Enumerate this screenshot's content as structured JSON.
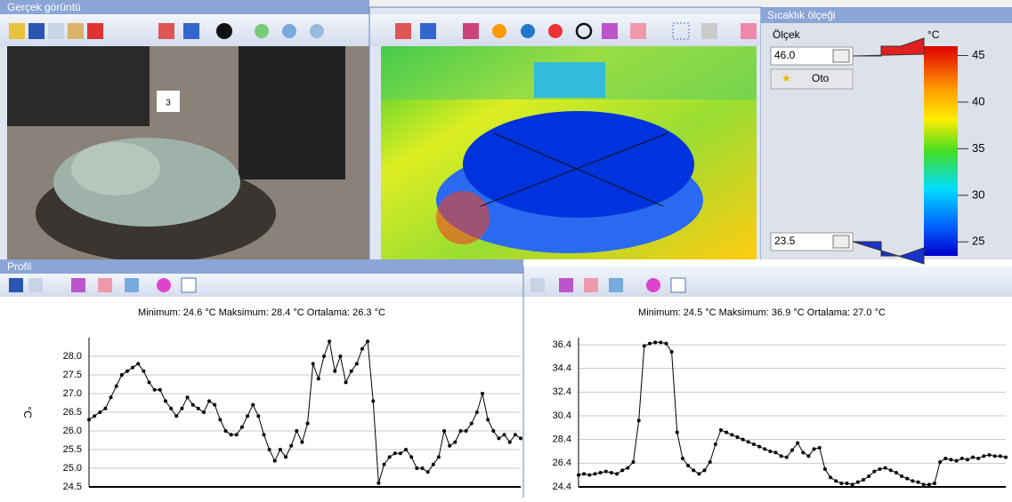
{
  "panels": {
    "photo_title": "Gerçek görüntü",
    "photo_tag": "3",
    "profile_title": "Profil"
  },
  "scale": {
    "title": "Sıcaklık ölçeği",
    "label": "Ölçek",
    "unit": "°C",
    "auto": "Oto",
    "max": {
      "value": 46,
      "label": "46.0"
    },
    "min": {
      "value": 23.5,
      "label": "23.5"
    },
    "yticks": [
      25,
      30,
      35,
      40,
      45
    ]
  },
  "chart_data": [
    {
      "type": "line",
      "subtitle": "Minimum:  24.6  °C Maksimum:  28.4  °C Ortalama:  26.3  °C",
      "ylabel": "°C",
      "ylim": [
        24.5,
        28.5
      ],
      "yticks": [
        24.5,
        {
          "value": 25,
          "label": "25.0"
        },
        25.5,
        {
          "value": 26,
          "label": "26.0"
        },
        26.5,
        {
          "value": 27,
          "label": "27.0"
        },
        27.5,
        {
          "value": 28,
          "label": "28.0"
        }
      ],
      "grid": true,
      "series": [
        {
          "color": "#000000",
          "values": [
            26.3,
            26.4,
            26.5,
            26.6,
            26.9,
            27.2,
            27.5,
            27.6,
            27.7,
            27.8,
            27.6,
            27.3,
            27.1,
            27.1,
            26.8,
            26.6,
            26.4,
            26.6,
            26.9,
            26.7,
            26.6,
            26.5,
            26.8,
            26.7,
            26.3,
            26.0,
            25.9,
            25.9,
            26.1,
            26.4,
            26.7,
            26.4,
            25.9,
            25.5,
            25.2,
            25.5,
            25.3,
            25.6,
            26.0,
            25.7,
            26.2,
            27.8,
            27.4,
            28.0,
            28.4,
            27.6,
            28.0,
            27.3,
            27.6,
            27.8,
            28.2,
            28.4,
            26.8,
            24.6,
            25.1,
            25.3,
            25.4,
            25.4,
            25.5,
            25.3,
            25.0,
            25.0,
            24.9,
            25.1,
            25.3,
            26.0,
            25.6,
            25.7,
            26.0,
            26.0,
            26.2,
            26.5,
            27.0,
            26.3,
            26.0,
            25.8,
            25.9,
            25.7,
            25.9,
            25.8
          ]
        }
      ]
    },
    {
      "type": "line",
      "subtitle": "Minimum:  24.5  °C Maksimum:  36.9  °C Ortalama:  27.0  °C",
      "ylim": [
        24.4,
        37.0
      ],
      "yticks": [
        24.4,
        26.4,
        28.4,
        30.4,
        32.4,
        34.4,
        36.4
      ],
      "grid": true,
      "series": [
        {
          "color": "#000000",
          "values": [
            25.4,
            25.5,
            25.4,
            25.5,
            25.6,
            25.7,
            25.6,
            25.5,
            25.8,
            26.0,
            26.5,
            30.0,
            36.3,
            36.5,
            36.6,
            36.6,
            36.5,
            35.8,
            29.0,
            26.8,
            26.2,
            25.8,
            25.5,
            25.8,
            26.5,
            28.0,
            29.2,
            29.0,
            28.8,
            28.6,
            28.4,
            28.2,
            28.0,
            27.8,
            27.6,
            27.4,
            27.3,
            27.0,
            26.9,
            27.5,
            28.1,
            27.3,
            27.0,
            27.6,
            27.7,
            25.9,
            25.2,
            24.9,
            24.7,
            24.7,
            24.6,
            24.8,
            25.0,
            25.3,
            25.7,
            25.9,
            26.0,
            25.8,
            25.6,
            25.3,
            25.1,
            24.9,
            24.8,
            24.6,
            24.6,
            24.7,
            26.5,
            26.8,
            26.7,
            26.6,
            26.8,
            26.7,
            26.9,
            26.8,
            27.0,
            27.1,
            27.0,
            27.0,
            26.9
          ]
        }
      ]
    }
  ]
}
